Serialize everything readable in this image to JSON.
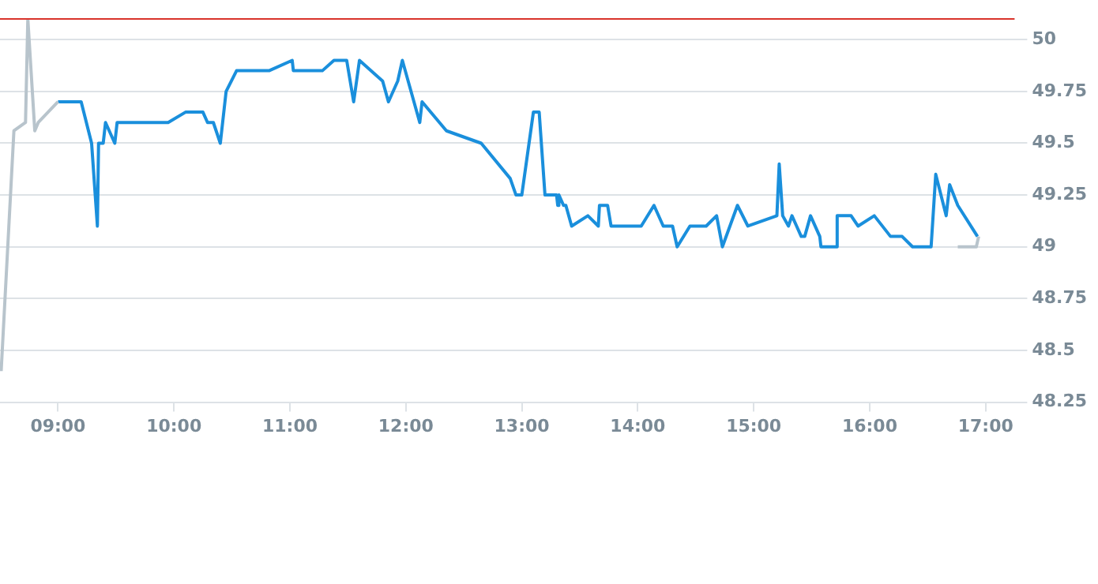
{
  "chart_data": {
    "type": "line",
    "xlim": [
      8.5,
      17.25
    ],
    "xticks": [
      {
        "value": 9,
        "label": "09:00"
      },
      {
        "value": 10,
        "label": "10:00"
      },
      {
        "value": 11,
        "label": "11:00"
      },
      {
        "value": 12,
        "label": "12:00"
      },
      {
        "value": 13,
        "label": "13:00"
      },
      {
        "value": 14,
        "label": "14:00"
      },
      {
        "value": 15,
        "label": "15:00"
      },
      {
        "value": 16,
        "label": "16:00"
      },
      {
        "value": 17,
        "label": "17:00"
      }
    ],
    "ylim": [
      48.25,
      50.1
    ],
    "yticks": [
      48.25,
      48.5,
      48.75,
      49,
      49.25,
      49.5,
      49.75,
      50
    ],
    "grid": "y",
    "legend": false,
    "marker": "none",
    "ref_lines": [
      {
        "axis": "y",
        "value": 50.1,
        "color": "#d9342b"
      }
    ],
    "series": [
      {
        "color": "#b8c4cc",
        "x": [
          8.51,
          8.62,
          8.72,
          8.74,
          8.8,
          8.83,
          9.0
        ],
        "values": [
          48.4,
          49.56,
          49.6,
          50.1,
          49.56,
          49.6,
          49.7
        ]
      },
      {
        "color": "#1a8fdc",
        "x": [
          9.0,
          9.2,
          9.29,
          9.34,
          9.35,
          9.39,
          9.41,
          9.49,
          9.51,
          9.95,
          10.1,
          10.25,
          10.29,
          10.34,
          10.4,
          10.45,
          10.54,
          10.82,
          11.02,
          11.03,
          11.28,
          11.38,
          11.49,
          11.55,
          11.6,
          11.8,
          11.85,
          11.93,
          11.97,
          12.12,
          12.14,
          12.35,
          12.65,
          12.9,
          12.95,
          13.0,
          13.1,
          13.15,
          13.2,
          13.3,
          13.31,
          13.32,
          13.36,
          13.38,
          13.43,
          13.57,
          13.66,
          13.67,
          13.74,
          13.77,
          14.03,
          14.14,
          14.22,
          14.3,
          14.34,
          14.45,
          14.59,
          14.68,
          14.73,
          14.86,
          14.95,
          15.2,
          15.22,
          15.25,
          15.3,
          15.33,
          15.37,
          15.41,
          15.44,
          15.49,
          15.57,
          15.58,
          15.71,
          15.72,
          15.84,
          15.9,
          16.04,
          16.18,
          16.28,
          16.37,
          16.53,
          16.57,
          16.66,
          16.69,
          16.76,
          16.93
        ],
        "values": [
          49.7,
          49.7,
          49.5,
          49.1,
          49.5,
          49.5,
          49.6,
          49.5,
          49.6,
          49.6,
          49.65,
          49.65,
          49.6,
          49.6,
          49.5,
          49.75,
          49.85,
          49.85,
          49.9,
          49.85,
          49.85,
          49.9,
          49.9,
          49.7,
          49.9,
          49.8,
          49.7,
          49.8,
          49.9,
          49.6,
          49.7,
          49.56,
          49.5,
          49.33,
          49.25,
          49.25,
          49.65,
          49.65,
          49.25,
          49.25,
          49.2,
          49.25,
          49.2,
          49.2,
          49.1,
          49.15,
          49.1,
          49.2,
          49.2,
          49.1,
          49.1,
          49.2,
          49.1,
          49.1,
          49.0,
          49.1,
          49.1,
          49.15,
          49.0,
          49.2,
          49.1,
          49.15,
          49.4,
          49.15,
          49.1,
          49.15,
          49.1,
          49.05,
          49.05,
          49.15,
          49.05,
          49.0,
          49.0,
          49.15,
          49.15,
          49.1,
          49.15,
          49.05,
          49.05,
          49.0,
          49.0,
          49.35,
          49.15,
          49.3,
          49.2,
          49.05
        ]
      },
      {
        "color": "#b8c4cc",
        "x": [
          16.76,
          16.92,
          16.94
        ],
        "values": [
          49.0,
          49.0,
          49.05
        ]
      }
    ]
  }
}
